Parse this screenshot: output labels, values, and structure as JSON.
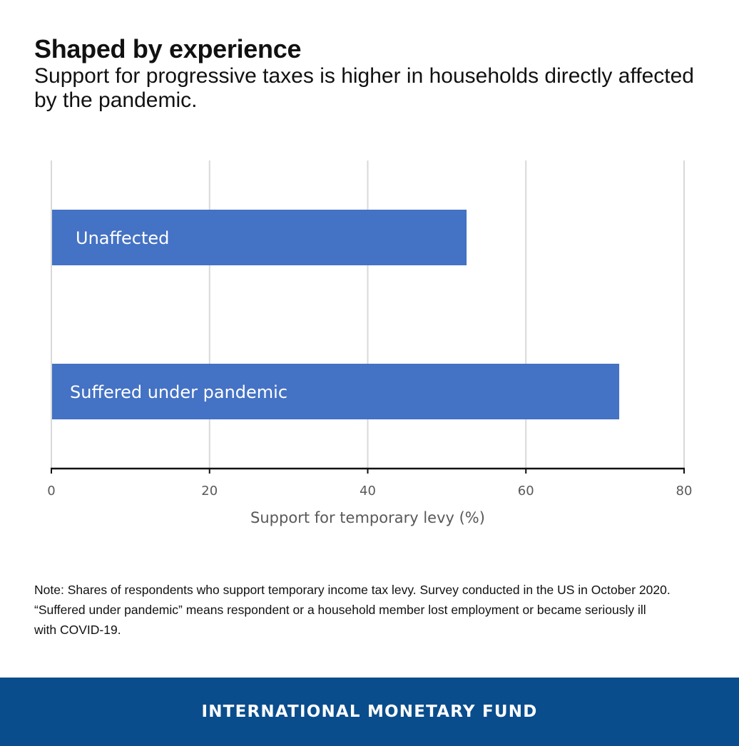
{
  "header": {
    "title": "Shaped by experience",
    "subtitle": "Support for progressive taxes is higher in households directly affected by the pandemic."
  },
  "chart_data": {
    "type": "bar",
    "orientation": "horizontal",
    "categories": [
      "Unaffected",
      "Suffered under pandemic"
    ],
    "values": [
      52.5,
      71.8
    ],
    "xlabel": "Support for temporary levy (%)",
    "ylabel": "",
    "xlim": [
      0,
      80
    ],
    "xticks": [
      0,
      20,
      40,
      60,
      80
    ],
    "grid": true,
    "legend": "none",
    "bar_color": "#4472c4",
    "category_labels_inside_bars": true
  },
  "note": {
    "lines": [
      "Note: Shares of respondents who support temporary income tax levy. Survey conducted in the US in October 2020.",
      "“Suffered under pandemic” means respondent or a household member lost employment or became seriously ill",
      "with COVID-19."
    ]
  },
  "footer": {
    "text": "INTERNATIONAL MONETARY FUND",
    "background": "#0a4d8c"
  }
}
